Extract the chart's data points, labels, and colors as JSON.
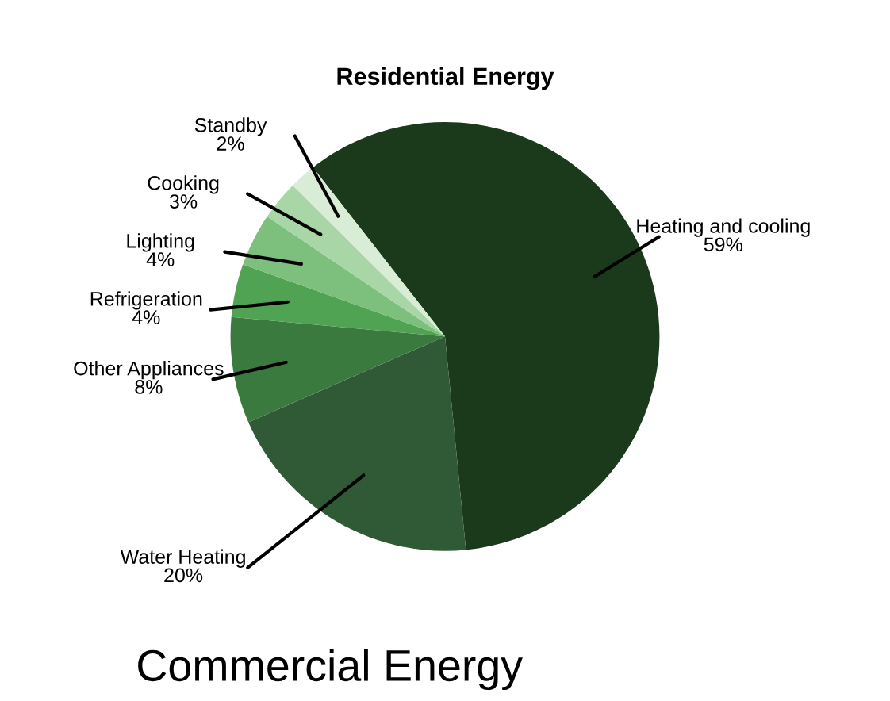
{
  "chart_data": {
    "type": "pie",
    "title": "Residential Energy",
    "categories": [
      "Heating and cooling",
      "Water Heating",
      "Other Appliances",
      "Refrigeration",
      "Lighting",
      "Cooking",
      "Standby"
    ],
    "values": [
      59,
      20,
      8,
      4,
      4,
      3,
      2
    ],
    "value_labels": [
      "59%",
      "20%",
      "8%",
      "4%",
      "4%",
      "3%",
      "2%"
    ],
    "colors": [
      "#1b3a1b",
      "#2f5a35",
      "#3b7a3f",
      "#4fa352",
      "#7dbf7c",
      "#a9d6a6",
      "#d9edd6"
    ],
    "annotations": [
      "Commercial Energy"
    ]
  }
}
